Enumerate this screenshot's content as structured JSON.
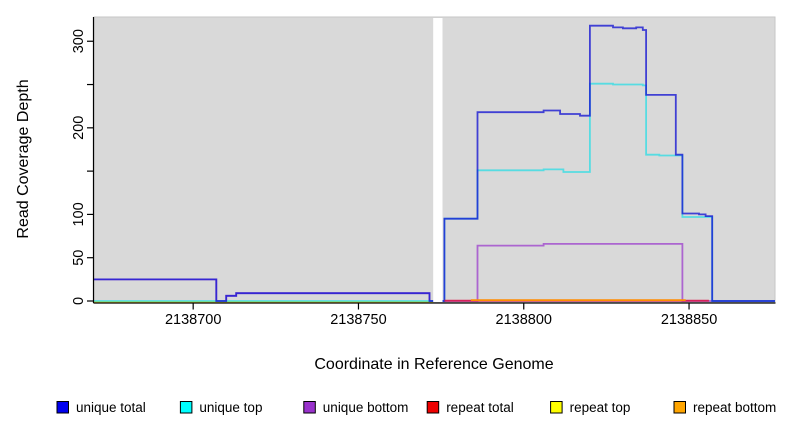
{
  "figure": {
    "background": "#ffffff",
    "panel_background": "#d9d9d9",
    "panel_border": "#c6c6c6"
  },
  "chart_data": {
    "type": "line",
    "subtype": "step-coverage",
    "title": "",
    "xlabel": "Coordinate in Reference Genome",
    "ylabel": "Read Coverage Depth",
    "xlim": [
      2138670,
      2138876
    ],
    "ylim": [
      0,
      328
    ],
    "x_ticks": [
      2138700,
      2138750,
      2138800,
      2138850
    ],
    "x_tick_labels": [
      "2138700",
      "2138750",
      "2138800",
      "2138850"
    ],
    "y_ticks": [
      0,
      50,
      100,
      150,
      200,
      250,
      300
    ],
    "y_tick_labels": [
      "0",
      "50",
      "100",
      "",
      "200",
      "",
      "300"
    ],
    "grid": false,
    "legend_position": "bottom",
    "no_data_gap": {
      "from": 2138772.6,
      "to": 2138775.4
    },
    "series": [
      {
        "name": "repeat top",
        "color": "#f0e130",
        "opacity": 0.9,
        "points": [
          [
            2138670,
            -1
          ],
          [
            2138772.6,
            -1
          ]
        ]
      },
      {
        "name": "unique bottom",
        "color": "#9933cc",
        "opacity": 0.7,
        "points": [
          [
            2138670,
            25
          ],
          [
            2138707,
            0
          ],
          [
            2138710,
            6
          ],
          [
            2138713,
            9
          ],
          [
            2138771.5,
            0
          ],
          [
            2138786,
            64
          ],
          [
            2138806,
            66
          ],
          [
            2138848,
            0
          ],
          [
            2138876,
            0
          ]
        ]
      },
      {
        "name": "unique top",
        "color": "#00dde8",
        "opacity": 0.6,
        "points": [
          [
            2138670,
            0
          ],
          [
            2138776,
            95
          ],
          [
            2138786,
            151
          ],
          [
            2138806,
            152
          ],
          [
            2138812,
            149
          ],
          [
            2138820,
            251
          ],
          [
            2138827,
            250
          ],
          [
            2138836,
            249
          ],
          [
            2138837,
            169
          ],
          [
            2138841,
            168
          ],
          [
            2138848,
            97
          ],
          [
            2138857,
            0
          ],
          [
            2138876,
            0
          ]
        ]
      },
      {
        "name": "unique total",
        "color": "#1515d2",
        "opacity": 0.78,
        "points": [
          [
            2138670,
            25
          ],
          [
            2138707,
            0
          ],
          [
            2138710,
            6
          ],
          [
            2138713,
            9
          ],
          [
            2138771.5,
            0
          ],
          [
            2138776,
            95
          ],
          [
            2138786,
            218
          ],
          [
            2138806,
            220
          ],
          [
            2138811,
            216
          ],
          [
            2138817,
            214
          ],
          [
            2138820,
            318
          ],
          [
            2138827,
            316
          ],
          [
            2138830,
            315
          ],
          [
            2138834,
            316
          ],
          [
            2138836,
            313
          ],
          [
            2138837,
            238
          ],
          [
            2138846,
            169
          ],
          [
            2138848,
            101
          ],
          [
            2138853,
            100
          ],
          [
            2138855,
            98
          ],
          [
            2138857,
            0
          ],
          [
            2138876,
            0
          ]
        ]
      },
      {
        "name": "repeat total",
        "color": "#dc1445",
        "opacity": 0.85,
        "points": [
          [
            2138776,
            0.4
          ],
          [
            2138856,
            0.4
          ]
        ]
      },
      {
        "name": "repeat bottom",
        "color": "#ff8c00",
        "opacity": 1,
        "points": [
          [
            2138784,
            1
          ],
          [
            2138849,
            1
          ]
        ]
      }
    ]
  },
  "legend": {
    "items": [
      {
        "label": "unique total",
        "color": "#0000ee"
      },
      {
        "label": "unique top",
        "color": "#00ffff"
      },
      {
        "label": "unique bottom",
        "color": "#9932cc"
      },
      {
        "label": "repeat total",
        "color": "#ee0000"
      },
      {
        "label": "repeat top",
        "color": "#ffff00"
      },
      {
        "label": "repeat bottom",
        "color": "#ffa500"
      }
    ]
  }
}
